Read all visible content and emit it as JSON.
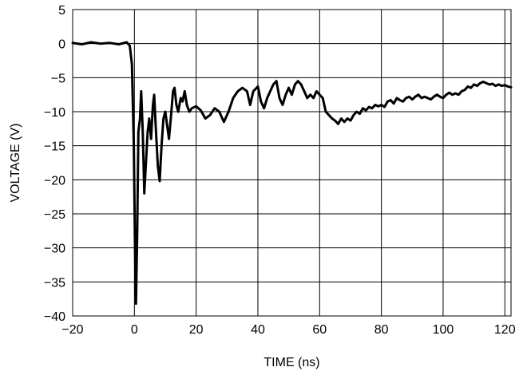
{
  "chart_data": {
    "type": "line",
    "title": "",
    "xlabel": "TIME (ns)",
    "ylabel": "VOLTAGE (V)",
    "xlim": [
      -20,
      122
    ],
    "ylim": [
      -40,
      5
    ],
    "grid": true,
    "legend": "none",
    "x_ticks": [
      -20,
      0,
      20,
      40,
      60,
      80,
      100,
      120
    ],
    "y_ticks": [
      5,
      0,
      -5,
      -10,
      -15,
      -20,
      -25,
      -30,
      -35,
      -40
    ],
    "x_tick_labels": [
      "−20",
      "0",
      "20",
      "40",
      "60",
      "80",
      "100",
      "120"
    ],
    "y_tick_labels": [
      "5",
      "0",
      "−5",
      "−10",
      "−15",
      "−20",
      "−25",
      "−30",
      "−35",
      "−40"
    ],
    "series": [
      {
        "color": "#000000",
        "points": [
          [
            -20,
            0.1
          ],
          [
            -17,
            -0.1
          ],
          [
            -14,
            0.2
          ],
          [
            -11,
            0
          ],
          [
            -8,
            0.1
          ],
          [
            -5,
            -0.1
          ],
          [
            -2.5,
            0.2
          ],
          [
            -1.5,
            -0.3
          ],
          [
            -0.8,
            -3
          ],
          [
            -0.2,
            -15
          ],
          [
            0.2,
            -30
          ],
          [
            0.5,
            -38.2
          ],
          [
            0.9,
            -28
          ],
          [
            1.3,
            -13
          ],
          [
            1.8,
            -11
          ],
          [
            2.2,
            -7
          ],
          [
            2.7,
            -13
          ],
          [
            3.2,
            -22
          ],
          [
            3.8,
            -17
          ],
          [
            4.3,
            -13
          ],
          [
            4.8,
            -11
          ],
          [
            5.4,
            -14
          ],
          [
            6,
            -9
          ],
          [
            6.4,
            -7.5
          ],
          [
            7,
            -13
          ],
          [
            7.6,
            -18
          ],
          [
            8.2,
            -20.2
          ],
          [
            8.8,
            -15
          ],
          [
            9.4,
            -11
          ],
          [
            10,
            -10
          ],
          [
            10.6,
            -12
          ],
          [
            11.2,
            -14
          ],
          [
            11.8,
            -11
          ],
          [
            12.5,
            -7
          ],
          [
            13,
            -6.5
          ],
          [
            13.6,
            -9
          ],
          [
            14.2,
            -10
          ],
          [
            15,
            -8
          ],
          [
            15.6,
            -8.5
          ],
          [
            16.3,
            -7
          ],
          [
            17,
            -9
          ],
          [
            17.8,
            -10
          ],
          [
            18.6,
            -9.5
          ],
          [
            20,
            -9.2
          ],
          [
            21.5,
            -9.8
          ],
          [
            23,
            -11
          ],
          [
            24.5,
            -10.5
          ],
          [
            26,
            -9.5
          ],
          [
            27.5,
            -10
          ],
          [
            29,
            -11.5
          ],
          [
            30.5,
            -10
          ],
          [
            32,
            -8
          ],
          [
            33.5,
            -7
          ],
          [
            35,
            -6.5
          ],
          [
            36.5,
            -7
          ],
          [
            37.5,
            -9
          ],
          [
            38.5,
            -7
          ],
          [
            40,
            -6.3
          ],
          [
            41,
            -8.5
          ],
          [
            42,
            -9.5
          ],
          [
            43,
            -8
          ],
          [
            44,
            -7
          ],
          [
            45,
            -6
          ],
          [
            46,
            -5.5
          ],
          [
            47,
            -8
          ],
          [
            48,
            -9
          ],
          [
            49,
            -7.5
          ],
          [
            50,
            -6.5
          ],
          [
            51,
            -7.5
          ],
          [
            52,
            -6
          ],
          [
            53,
            -5.5
          ],
          [
            54,
            -6
          ],
          [
            55,
            -7
          ],
          [
            56,
            -8
          ],
          [
            57,
            -7.5
          ],
          [
            58,
            -8
          ],
          [
            59,
            -7
          ],
          [
            60,
            -7.5
          ],
          [
            61,
            -8
          ],
          [
            62,
            -10
          ],
          [
            63,
            -10.5
          ],
          [
            64,
            -11
          ],
          [
            65,
            -11.3
          ],
          [
            66,
            -11.8
          ],
          [
            67,
            -11
          ],
          [
            68,
            -11.5
          ],
          [
            69,
            -11
          ],
          [
            70,
            -11.3
          ],
          [
            71,
            -10.5
          ],
          [
            72,
            -10
          ],
          [
            73,
            -10.3
          ],
          [
            74,
            -9.5
          ],
          [
            75,
            -9.8
          ],
          [
            76,
            -9.3
          ],
          [
            77,
            -9.5
          ],
          [
            78,
            -9
          ],
          [
            79,
            -9.2
          ],
          [
            80,
            -9
          ],
          [
            81,
            -9.3
          ],
          [
            82,
            -8.5
          ],
          [
            83,
            -8.3
          ],
          [
            84,
            -8.8
          ],
          [
            85,
            -8
          ],
          [
            86,
            -8.3
          ],
          [
            87,
            -8.5
          ],
          [
            88,
            -8
          ],
          [
            89,
            -7.8
          ],
          [
            90,
            -8.2
          ],
          [
            91,
            -7.8
          ],
          [
            92,
            -7.5
          ],
          [
            93,
            -8
          ],
          [
            94,
            -7.8
          ],
          [
            95,
            -8
          ],
          [
            96,
            -8.2
          ],
          [
            97,
            -7.8
          ],
          [
            98,
            -7.5
          ],
          [
            99,
            -7.8
          ],
          [
            100,
            -8
          ],
          [
            101,
            -7.5
          ],
          [
            102,
            -7.2
          ],
          [
            103,
            -7.5
          ],
          [
            104,
            -7.3
          ],
          [
            105,
            -7.5
          ],
          [
            106,
            -7
          ],
          [
            107,
            -6.8
          ],
          [
            108,
            -6.3
          ],
          [
            109,
            -6.5
          ],
          [
            110,
            -6
          ],
          [
            111,
            -6.2
          ],
          [
            112,
            -5.8
          ],
          [
            113,
            -5.6
          ],
          [
            114,
            -5.8
          ],
          [
            115,
            -6
          ],
          [
            116,
            -5.9
          ],
          [
            117,
            -6.2
          ],
          [
            118,
            -6
          ],
          [
            119,
            -6.2
          ],
          [
            120,
            -6.1
          ],
          [
            121,
            -6.3
          ],
          [
            122,
            -6.4
          ]
        ]
      }
    ]
  }
}
